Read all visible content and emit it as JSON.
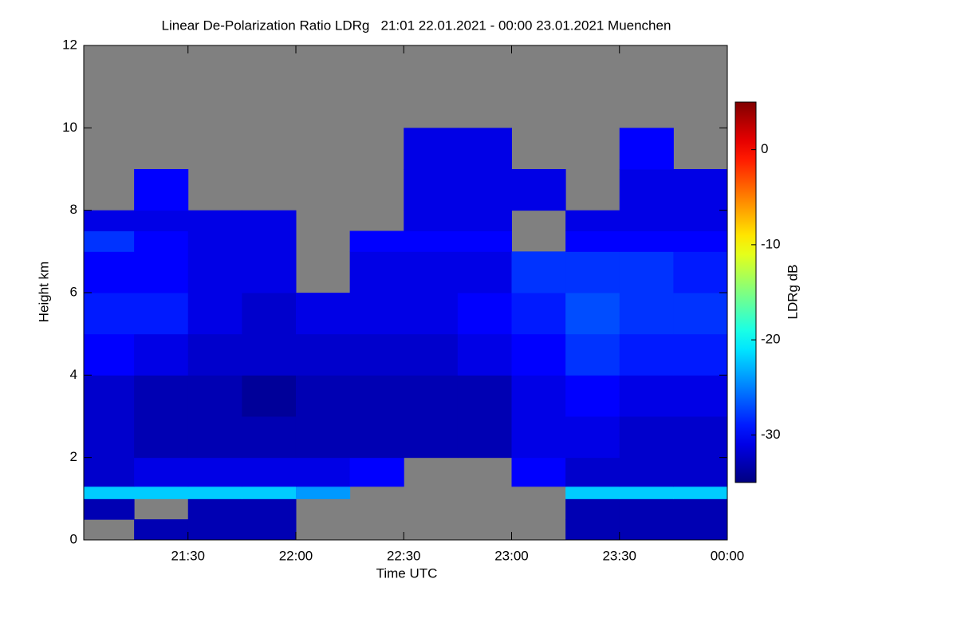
{
  "chart_data": {
    "type": "heatmap",
    "title": "Linear De-Polarization Ratio LDRg   21:01 22.01.2021 - 00:00 23.01.2021 Muenchen",
    "x_label": "Time UTC",
    "y_label": "Height km",
    "colorbar_label": "LDRg dB",
    "xlim": [
      1261,
      1440
    ],
    "xticks": [
      {
        "value": 1290,
        "label": "21:30"
      },
      {
        "value": 1320,
        "label": "22:00"
      },
      {
        "value": 1350,
        "label": "22:30"
      },
      {
        "value": 1380,
        "label": "23:00"
      },
      {
        "value": 1410,
        "label": "23:30"
      },
      {
        "value": 1440,
        "label": "00:00"
      }
    ],
    "ylim": [
      0,
      12
    ],
    "yticks": [
      0,
      2,
      4,
      6,
      8,
      10,
      12
    ],
    "clim": [
      -35,
      5
    ],
    "cticks": [
      0,
      -10,
      -20,
      -30
    ],
    "x_bins": [
      1261,
      1275,
      1290,
      1305,
      1320,
      1335,
      1350,
      1365,
      1380,
      1395,
      1410,
      1425,
      1440
    ],
    "y_bins": [
      0,
      0.5,
      1,
      1.3,
      2,
      3,
      4,
      5,
      6,
      7,
      7.5,
      8,
      9,
      10
    ],
    "z": [
      [
        null,
        -33,
        -33,
        -33,
        null,
        null,
        null,
        null,
        null,
        -33,
        -33,
        -33
      ],
      [
        -33,
        null,
        -33,
        -33,
        null,
        null,
        null,
        null,
        null,
        -33,
        -33,
        -33
      ],
      [
        -22,
        -22,
        -22,
        -22,
        -24,
        null,
        null,
        null,
        null,
        -22,
        -22,
        -22
      ],
      [
        -32,
        -31,
        -31,
        -31,
        -31,
        -30,
        null,
        null,
        -30,
        -32,
        -32,
        -32
      ],
      [
        -32,
        -33,
        -33,
        -33,
        -33,
        -33,
        -33,
        -33,
        -31,
        -31,
        -32,
        -32
      ],
      [
        -32,
        -33,
        -33,
        -34,
        -33,
        -33,
        -33,
        -33,
        -31,
        -30,
        -31,
        -31
      ],
      [
        -30,
        -31,
        -32,
        -32,
        -32,
        -32,
        -32,
        -31,
        -30,
        -28,
        -29,
        -29
      ],
      [
        -29,
        -29,
        -31,
        -32,
        -31,
        -31,
        -31,
        -30,
        -29,
        -27,
        -28,
        -28
      ],
      [
        -30,
        -30,
        -31,
        -31,
        null,
        -31,
        -31,
        -31,
        -28,
        -28,
        -28,
        -29
      ],
      [
        -28,
        -30,
        -31,
        -31,
        null,
        -30,
        -30,
        -30,
        null,
        -30,
        -30,
        -30
      ],
      [
        -31,
        -31,
        -31,
        -31,
        null,
        null,
        -31,
        -31,
        null,
        -31,
        -31,
        -31
      ],
      [
        null,
        -30,
        null,
        null,
        null,
        null,
        -31,
        -31,
        -31,
        null,
        -31,
        -31
      ],
      [
        null,
        null,
        null,
        null,
        null,
        null,
        -31,
        -31,
        null,
        null,
        -30,
        null
      ]
    ],
    "missing_color": "#808080"
  }
}
